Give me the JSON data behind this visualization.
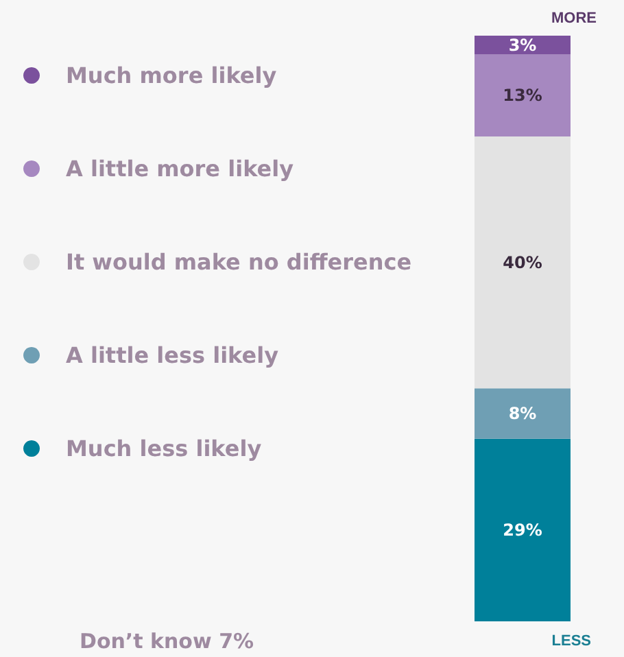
{
  "chart_data": {
    "type": "bar",
    "stacked": true,
    "legend": "left",
    "categories": [
      null
    ],
    "series": [
      {
        "name": "Much less likely",
        "color": "#00809a",
        "values": [
          29
        ],
        "value_labels": [
          "29%"
        ]
      },
      {
        "name": "A little less likely",
        "color": "#6f9fb4",
        "values": [
          8
        ],
        "value_labels": [
          "8%"
        ]
      },
      {
        "name": "It would make no difference",
        "color": "#e3e3e3",
        "values": [
          40
        ],
        "value_labels": [
          "40%"
        ]
      },
      {
        "name": "A little more likely",
        "color": "#a688c0",
        "values": [
          13
        ],
        "value_labels": [
          "13%"
        ]
      },
      {
        "name": "Much more likely",
        "color": "#7b519d",
        "values": [
          3
        ],
        "value_labels": [
          "3%"
        ]
      }
    ],
    "annotations": [
      "MORE",
      "LESS",
      "Don’t know 7%"
    ]
  }
}
